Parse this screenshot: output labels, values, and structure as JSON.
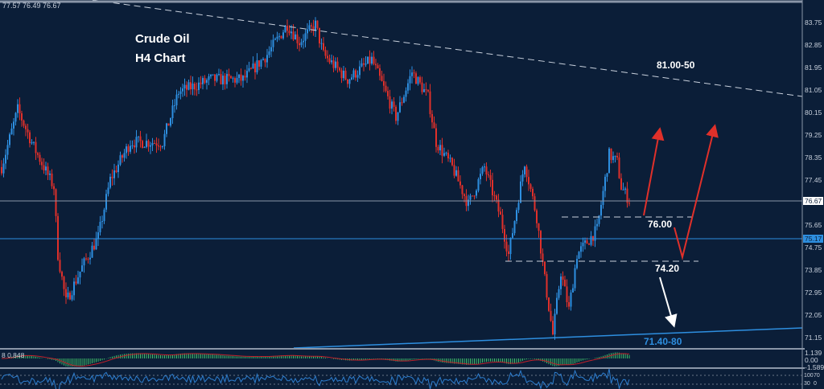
{
  "header": {
    "ohlc": "77.57 76.49 76.67"
  },
  "chart_data": {
    "type": "candlestick",
    "title": "Crude Oil",
    "subtitle": "H4  Chart",
    "y_ticks": [
      "83.75",
      "82.85",
      "81.95",
      "81.05",
      "80.15",
      "79.25",
      "78.35",
      "77.45",
      "75.65",
      "74.75",
      "73.85",
      "72.95",
      "72.05",
      "71.15"
    ],
    "ylim": [
      70.9,
      84.6
    ],
    "current_price": "76.67",
    "marked_price": "75.17",
    "approx_price_path": [
      [
        0,
        78.0
      ],
      [
        4,
        80.3
      ],
      [
        8,
        78.8
      ],
      [
        13,
        77.2
      ],
      [
        14,
        74.5
      ],
      [
        16,
        72.6
      ],
      [
        20,
        74.0
      ],
      [
        24,
        75.2
      ],
      [
        27,
        77.5
      ],
      [
        32,
        79.0
      ],
      [
        40,
        79.0
      ],
      [
        44,
        81.0
      ],
      [
        52,
        81.5
      ],
      [
        60,
        81.5
      ],
      [
        66,
        82.5
      ],
      [
        71,
        83.7
      ],
      [
        74,
        83.0
      ],
      [
        78,
        83.7
      ],
      [
        80,
        82.5
      ],
      [
        86,
        81.5
      ],
      [
        92,
        82.3
      ],
      [
        98,
        80.0
      ],
      [
        102,
        81.8
      ],
      [
        106,
        80.8
      ],
      [
        108,
        79.0
      ],
      [
        112,
        78.0
      ],
      [
        116,
        76.5
      ],
      [
        120,
        78.0
      ],
      [
        124,
        76.0
      ],
      [
        126,
        74.5
      ],
      [
        130,
        78.2
      ],
      [
        133,
        76.0
      ],
      [
        135,
        73.5
      ],
      [
        137,
        71.3
      ],
      [
        139,
        73.8
      ],
      [
        141,
        72.3
      ],
      [
        143,
        74.5
      ],
      [
        148,
        75.5
      ],
      [
        151,
        78.5
      ],
      [
        153,
        78.2
      ],
      [
        154,
        77.2
      ],
      [
        156,
        76.67
      ]
    ],
    "annotations": {
      "resistance": "81.00-50",
      "level_1": "76.00",
      "level_2": "74.20",
      "support": "71.40-80"
    },
    "levels": {
      "level_1": 76.0,
      "level_2": 74.2
    },
    "colors": {
      "bg": "#0b1e38",
      "up": "#2e8fe0",
      "down": "#e0302a",
      "support": "#2e8fe0",
      "arrow_up": "#e0302a",
      "arrow_down": "#ffffff"
    }
  },
  "indicators": {
    "macd_label": "8 0.848",
    "macd_ticks": [
      "1.139",
      "0.00",
      "-1.589"
    ],
    "osc_ticks": [
      "100",
      "70",
      "30",
      "0"
    ]
  }
}
